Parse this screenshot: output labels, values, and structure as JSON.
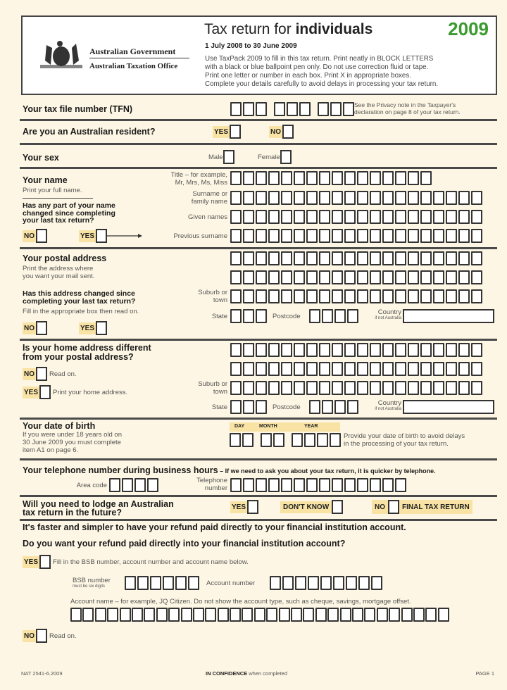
{
  "header": {
    "gov_name": "Australian Government",
    "office_name": "Australian Taxation Office",
    "title_prefix": "Tax return for ",
    "title_bold": "individuals",
    "year": "2009",
    "year_color": "#3a9a2e",
    "period": "1 July 2008 to 30 June 2009",
    "instructions": [
      "Use TaxPack 2009 to fill in this tax return. Print neatly in BLOCK LETTERS",
      "with a black or blue ballpoint pen only. Do not use correction fluid or tape.",
      "Print one letter or number in each box. Print X in appropriate boxes.",
      "Complete your details carefully to avoid delays in processing your tax return."
    ]
  },
  "tfn": {
    "label": "Your tax file number (TFN)",
    "groups": [
      3,
      3,
      3
    ],
    "note_line1": "See the Privacy note in the Taxpayer's",
    "note_line2": "declaration on page 8 of your tax return."
  },
  "resident": {
    "label": "Are you an Australian resident?",
    "yes": "YES",
    "no": "NO"
  },
  "sex": {
    "label": "Your sex",
    "male": "Male",
    "female": "Female"
  },
  "name": {
    "label": "Your name",
    "sub": "Print your full name.",
    "changed_q": [
      "Has any part of your name",
      "changed since completing",
      "your last tax return?"
    ],
    "no": "NO",
    "yes": "YES",
    "title_label": [
      "Title – for example,",
      "Mr, Mrs, Ms, Miss"
    ],
    "title_boxes": 16,
    "surname_label": [
      "Surname or",
      "family name"
    ],
    "given_label": "Given names",
    "previous_label": "Previous surname",
    "line_boxes": 20
  },
  "postal": {
    "label": "Your postal address",
    "sub": [
      "Print the address where",
      "you want your mail sent."
    ],
    "changed_q": [
      "Has this address changed since",
      "completing your last tax return?"
    ],
    "fill": "Fill in the appropriate box then read on.",
    "no": "NO",
    "yes": "YES",
    "suburb_label": [
      "Suburb or",
      "town"
    ],
    "state_label": "State",
    "state_boxes": 3,
    "postcode_label": "Postcode",
    "postcode_boxes": 4,
    "country_label": "Country",
    "country_sub": "if not Australia"
  },
  "home": {
    "label": [
      "Is your home address different",
      "from your postal address?"
    ],
    "no": "NO",
    "no_text": "Read on.",
    "yes": "YES",
    "yes_text": "Print your home address."
  },
  "dob": {
    "label": "Your date of birth",
    "sub": [
      "If you were under 18 years old on",
      "30 June 2009 you must complete",
      "item A1 on page 6."
    ],
    "day": "DAY",
    "month": "MONTH",
    "year": "YEAR",
    "note": [
      "Provide your date of birth to avoid delays",
      "in the processing of your tax return."
    ]
  },
  "phone": {
    "label": "Your telephone number during business hours",
    "note": " – If we need to ask you about your tax return, it is quicker by telephone.",
    "area_label": "Area code",
    "area_boxes": 4,
    "number_label": [
      "Telephone",
      "number"
    ],
    "number_boxes": 14
  },
  "lodge": {
    "label": [
      "Will you need to lodge an Australian",
      "tax return in the future?"
    ],
    "yes": "YES",
    "dont_know": "DON'T KNOW",
    "no": "NO",
    "final": "FINAL TAX RETURN"
  },
  "refund": {
    "line1": "It's faster and simpler to have your refund paid directly to your financial institution account.",
    "question": "Do you want your refund paid directly into your financial institution account?",
    "yes": "YES",
    "yes_text": "Fill in the BSB number, account number and account name below.",
    "bsb_label": "BSB number",
    "bsb_sub": "must be six digits",
    "bsb_boxes": 6,
    "account_label": "Account number",
    "account_boxes": 9,
    "account_name_label": "Account name – for example, JQ Citizen. Do not show the account type, such as cheque, savings, mortgage offset.",
    "account_name_boxes": 31,
    "no": "NO",
    "no_text": "Read on."
  },
  "footer": {
    "code": "NAT 2541-6.2009",
    "confidence_bold": "IN CONFIDENCE",
    "confidence_rest": " when completed",
    "page": "PAGE 1"
  }
}
